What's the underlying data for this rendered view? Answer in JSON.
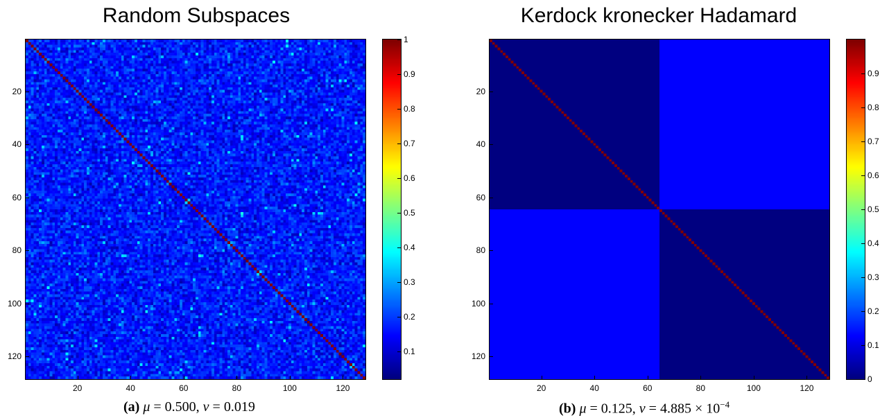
{
  "panels": [
    {
      "title": "Random Subspaces",
      "caption_label": "(a)",
      "caption_text": "μ = 0.500, ν = 0.019",
      "caption_mu": "0.500",
      "caption_nu": "0.019"
    },
    {
      "title": "Kerdock kronecker Hadamard",
      "caption_label": "(b)",
      "caption_text": "μ = 0.125, ν = 4.885 × 10⁻⁴",
      "caption_mu": "0.125",
      "caption_nu": "4.885 × 10",
      "caption_nu_exp": "−4"
    }
  ],
  "chart_data": [
    {
      "type": "heatmap",
      "title": "Random Subspaces",
      "size": 128,
      "y_ticks": [
        20,
        40,
        60,
        80,
        100,
        120
      ],
      "x_ticks": [
        20,
        40,
        60,
        80,
        100,
        120
      ],
      "xlim": [
        1,
        128
      ],
      "ylim": [
        1,
        128
      ],
      "colormap": "jet",
      "clim": [
        0.02,
        1.0
      ],
      "colorbar_ticks": [
        0.1,
        0.2,
        0.3,
        0.4,
        0.5,
        0.6,
        0.7,
        0.8,
        0.9,
        1
      ],
      "diagonal_value": 1.0,
      "offdiagonal": "random, approximately 0.02-0.45, mostly 0.1-0.25",
      "max_offdiagonal": 0.5
    },
    {
      "type": "heatmap",
      "title": "Kerdock kronecker Hadamard",
      "size": 128,
      "y_ticks": [
        20,
        40,
        60,
        80,
        100,
        120
      ],
      "x_ticks": [
        20,
        40,
        60,
        80,
        100,
        120
      ],
      "xlim": [
        1,
        128
      ],
      "ylim": [
        1,
        128
      ],
      "colormap": "jet",
      "clim": [
        0,
        1.0
      ],
      "colorbar_ticks": [
        0,
        0.1,
        0.2,
        0.3,
        0.4,
        0.5,
        0.6,
        0.7,
        0.8,
        0.9
      ],
      "diagonal_value": 1.0,
      "blocks": [
        {
          "rows": [
            1,
            64
          ],
          "cols": [
            1,
            64
          ],
          "value": 0.0
        },
        {
          "rows": [
            1,
            64
          ],
          "cols": [
            65,
            128
          ],
          "value": 0.125
        },
        {
          "rows": [
            65,
            128
          ],
          "cols": [
            1,
            64
          ],
          "value": 0.125
        },
        {
          "rows": [
            65,
            128
          ],
          "cols": [
            65,
            128
          ],
          "value": 0.0
        }
      ]
    }
  ]
}
